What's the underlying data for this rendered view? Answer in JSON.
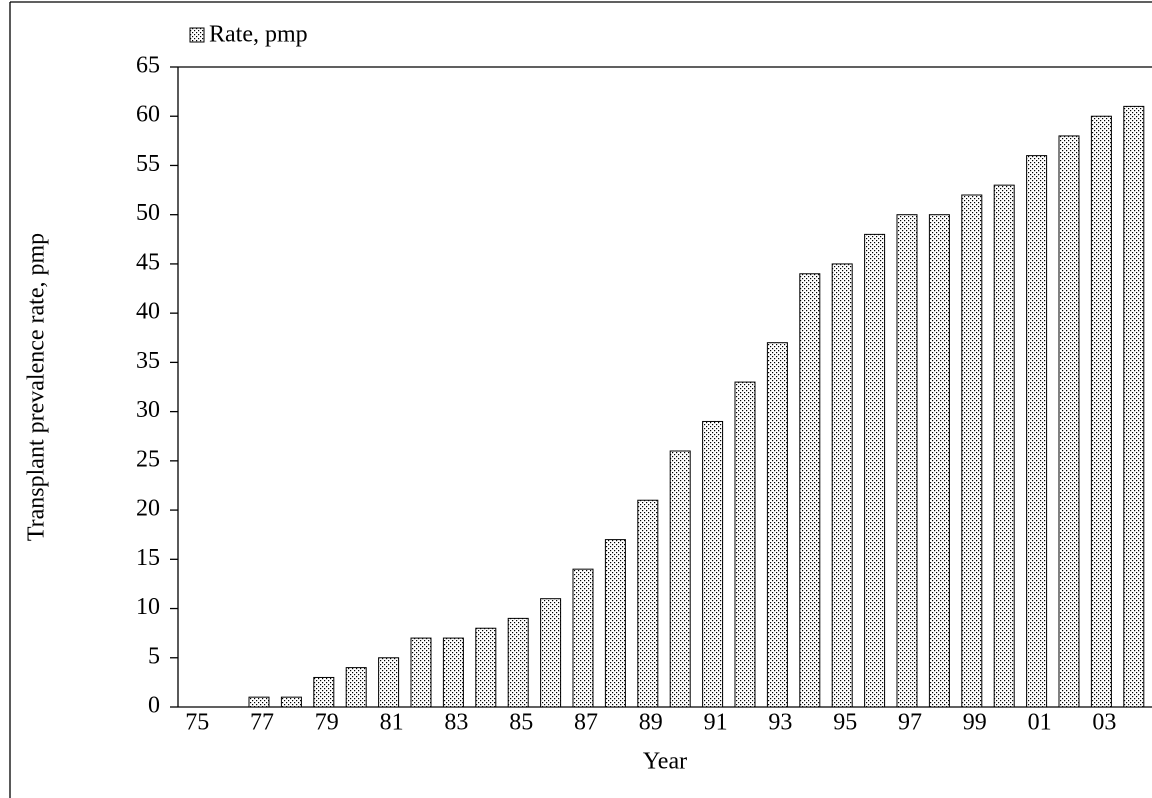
{
  "chart_data": {
    "type": "bar",
    "categories": [
      "75",
      null,
      "77",
      null,
      "79",
      null,
      "81",
      null,
      "83",
      null,
      "85",
      null,
      "87",
      null,
      "89",
      null,
      "91",
      null,
      "93",
      null,
      "95",
      null,
      "97",
      null,
      "99",
      null,
      "01",
      null,
      "03",
      null
    ],
    "series": [
      {
        "name": "Rate, pmp",
        "color": "#000000",
        "values": [
          0,
          0,
          1,
          1,
          3,
          4,
          5,
          7,
          7,
          8,
          9,
          11,
          14,
          17,
          21,
          26,
          29,
          33,
          37,
          44,
          45,
          48,
          50,
          50,
          52,
          53,
          56,
          58,
          60,
          61
        ]
      }
    ],
    "ylim": [
      0,
      65
    ],
    "yticks": [
      0,
      5,
      10,
      15,
      20,
      25,
      30,
      35,
      40,
      45,
      50,
      55,
      60,
      65
    ],
    "ylabel": "Transplant prevalence rate, pmp",
    "xlabel": "Year",
    "legend": "top-left"
  }
}
